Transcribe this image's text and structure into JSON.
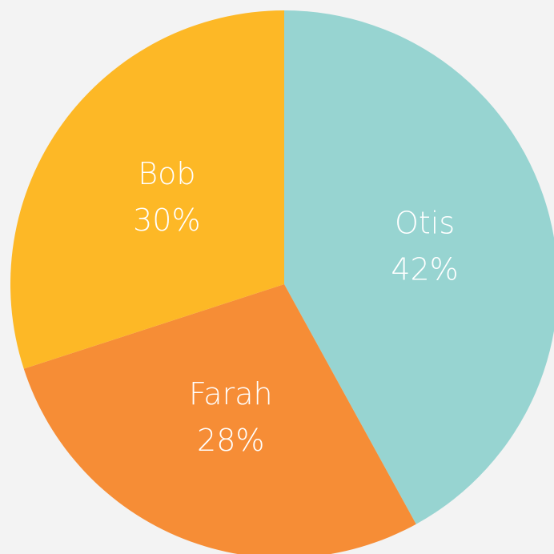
{
  "chart_data": {
    "type": "pie",
    "categories": [
      "Otis",
      "Farah",
      "Bob"
    ],
    "values": [
      42,
      28,
      30
    ],
    "value_labels": [
      "42%",
      "28%",
      "30%"
    ],
    "colors": [
      "#97d4d1",
      "#f68d36",
      "#fdb826"
    ]
  }
}
